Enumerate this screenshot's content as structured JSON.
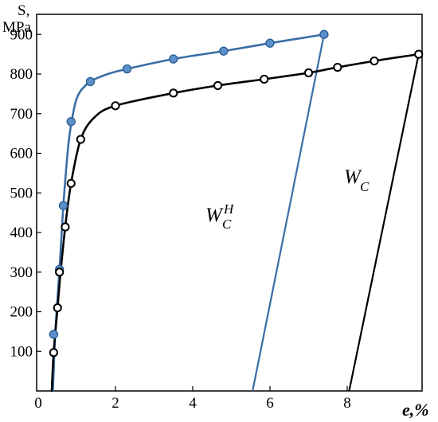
{
  "chart_data": {
    "type": "line",
    "y_axis": {
      "label_line1": "S,",
      "label_line2": "MPa",
      "ticks": [
        100,
        200,
        300,
        400,
        500,
        600,
        700,
        800,
        900
      ],
      "range": [
        0,
        1000
      ]
    },
    "x_axis": {
      "label": "e,%",
      "ticks": [
        0,
        2,
        4,
        6,
        8
      ],
      "range": [
        0,
        10
      ]
    },
    "grid": false,
    "series": [
      {
        "key": "blue",
        "color": "#3a6ea5",
        "marker": "filled-circle",
        "markers": [
          {
            "x": 0.4,
            "y": 143
          },
          {
            "x": 0.55,
            "y": 307
          },
          {
            "x": 0.65,
            "y": 468
          },
          {
            "x": 0.85,
            "y": 680
          },
          {
            "x": 1.35,
            "y": 781
          },
          {
            "x": 2.3,
            "y": 813
          },
          {
            "x": 3.5,
            "y": 838
          },
          {
            "x": 4.8,
            "y": 858
          },
          {
            "x": 6.0,
            "y": 878
          },
          {
            "x": 7.4,
            "y": 900
          }
        ],
        "curve": [
          {
            "x": 0.38,
            "y": 0
          },
          {
            "x": 0.44,
            "y": 143
          },
          {
            "x": 0.55,
            "y": 307
          },
          {
            "x": 0.65,
            "y": 468
          },
          {
            "x": 0.78,
            "y": 620
          },
          {
            "x": 0.9,
            "y": 700
          },
          {
            "x": 1.05,
            "y": 750
          },
          {
            "x": 1.35,
            "y": 781
          },
          {
            "x": 1.8,
            "y": 800
          },
          {
            "x": 2.3,
            "y": 813
          },
          {
            "x": 3.5,
            "y": 838
          },
          {
            "x": 4.8,
            "y": 858
          },
          {
            "x": 6.0,
            "y": 878
          },
          {
            "x": 7.4,
            "y": 900
          }
        ],
        "unload": [
          {
            "x": 7.4,
            "y": 900
          },
          {
            "x": 5.55,
            "y": 0
          }
        ]
      },
      {
        "key": "black",
        "color": "#000000",
        "marker": "open-circle",
        "markers": [
          {
            "x": 0.4,
            "y": 97
          },
          {
            "x": 0.5,
            "y": 210
          },
          {
            "x": 0.55,
            "y": 300
          },
          {
            "x": 0.7,
            "y": 414
          },
          {
            "x": 0.85,
            "y": 524
          },
          {
            "x": 1.1,
            "y": 635
          },
          {
            "x": 2.0,
            "y": 720
          },
          {
            "x": 3.5,
            "y": 752
          },
          {
            "x": 4.65,
            "y": 771
          },
          {
            "x": 5.85,
            "y": 787
          },
          {
            "x": 7.0,
            "y": 803
          },
          {
            "x": 7.75,
            "y": 817
          },
          {
            "x": 8.7,
            "y": 833
          },
          {
            "x": 9.85,
            "y": 850
          }
        ],
        "curve": [
          {
            "x": 0.35,
            "y": 0
          },
          {
            "x": 0.4,
            "y": 97
          },
          {
            "x": 0.5,
            "y": 210
          },
          {
            "x": 0.58,
            "y": 300
          },
          {
            "x": 0.7,
            "y": 414
          },
          {
            "x": 0.85,
            "y": 524
          },
          {
            "x": 1.1,
            "y": 635
          },
          {
            "x": 1.45,
            "y": 690
          },
          {
            "x": 2.0,
            "y": 720
          },
          {
            "x": 3.5,
            "y": 752
          },
          {
            "x": 4.65,
            "y": 771
          },
          {
            "x": 5.85,
            "y": 787
          },
          {
            "x": 7.0,
            "y": 803
          },
          {
            "x": 7.75,
            "y": 817
          },
          {
            "x": 8.7,
            "y": 833
          },
          {
            "x": 9.85,
            "y": 850
          }
        ],
        "unload": [
          {
            "x": 9.85,
            "y": 850
          },
          {
            "x": 8.05,
            "y": 0
          }
        ]
      }
    ],
    "annotations": [
      {
        "key": "wch",
        "main": "W",
        "sub": "C",
        "sup": "H",
        "x": 4.7,
        "y": 440
      },
      {
        "key": "wc",
        "main": "W",
        "sub": "C",
        "x": 8.1,
        "y": 520
      }
    ]
  }
}
